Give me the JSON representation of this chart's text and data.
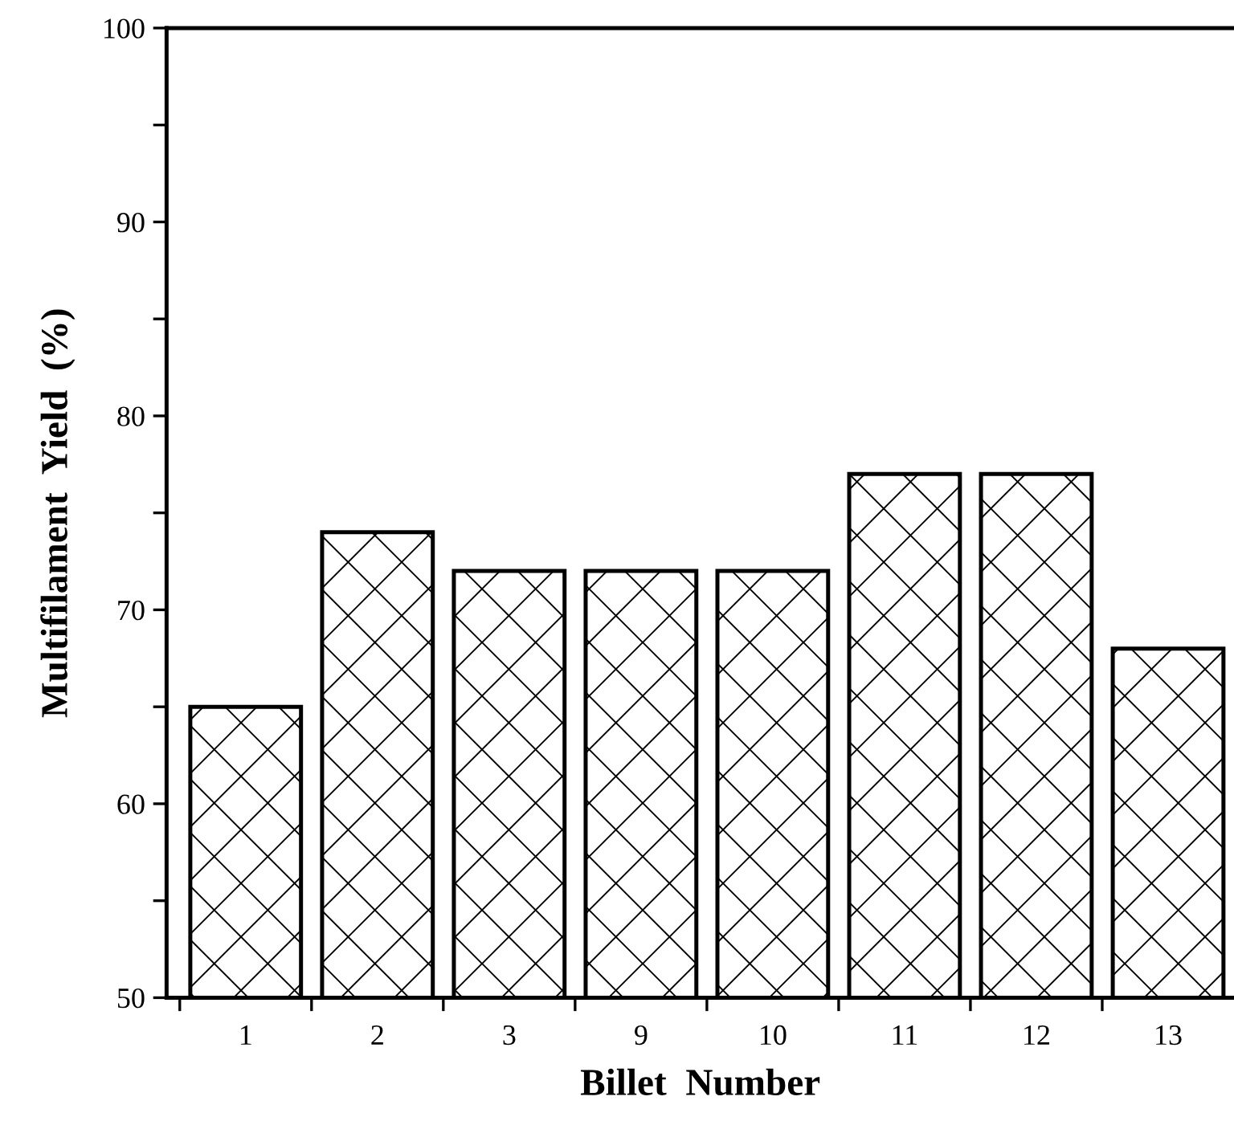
{
  "chart_data": {
    "type": "bar",
    "xlabel": "Billet  Number",
    "ylabel": "Multifilament  Yield  (%)",
    "categories": [
      "1",
      "2",
      "3",
      "9",
      "10",
      "11",
      "12",
      "13"
    ],
    "values": [
      65,
      74,
      72,
      72,
      72,
      77,
      77,
      68
    ],
    "color": "#000000",
    "ylim": [
      50,
      100
    ],
    "yticks": [
      50,
      {
        "value": 55,
        "label": null
      },
      60,
      {
        "value": 65,
        "label": null
      },
      70,
      {
        "value": 75,
        "label": null
      },
      80,
      {
        "value": 85,
        "label": null
      },
      90,
      {
        "value": 95,
        "label": null
      },
      100
    ],
    "grid": false,
    "legend": false
  }
}
